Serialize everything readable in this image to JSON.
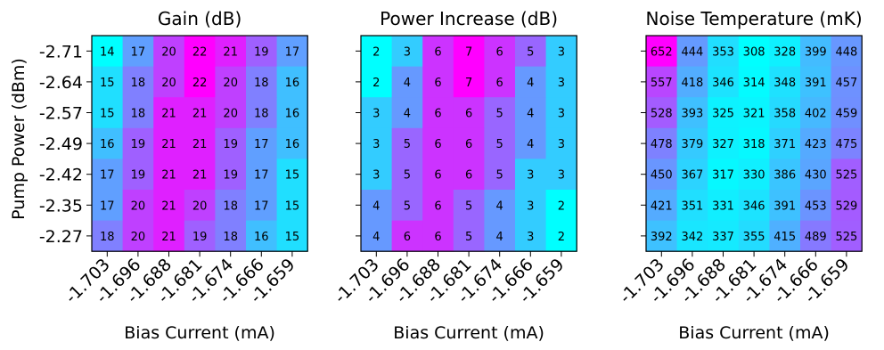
{
  "shared_axes": {
    "xlabel": "Bias Current (mA)",
    "ylabel": "Pump Power (dBm)"
  },
  "chart_data": [
    {
      "type": "heatmap",
      "title": "Gain (dB)",
      "x_categories": [
        "-1.703",
        "-1.696",
        "-1.688",
        "-1.681",
        "-1.674",
        "-1.666",
        "-1.659"
      ],
      "y_categories": [
        "-2.71",
        "-2.64",
        "-2.57",
        "-2.49",
        "-2.42",
        "-2.35",
        "-2.27"
      ],
      "xlabel": "Bias Current (mA)",
      "ylabel": "Pump Power (dBm)",
      "colormap": "cool",
      "values": [
        [
          14,
          17,
          20,
          22,
          21,
          19,
          17
        ],
        [
          15,
          18,
          20,
          22,
          20,
          18,
          16
        ],
        [
          15,
          18,
          21,
          21,
          20,
          18,
          16
        ],
        [
          16,
          19,
          21,
          21,
          19,
          17,
          16
        ],
        [
          17,
          19,
          21,
          21,
          19,
          17,
          15
        ],
        [
          17,
          20,
          21,
          20,
          18,
          17,
          15
        ],
        [
          18,
          20,
          21,
          19,
          18,
          16,
          15
        ]
      ]
    },
    {
      "type": "heatmap",
      "title": "Power Increase (dB)",
      "x_categories": [
        "-1.703",
        "-1.696",
        "-1.688",
        "-1.681",
        "-1.674",
        "-1.666",
        "-1.659"
      ],
      "y_categories": [
        "-2.71",
        "-2.64",
        "-2.57",
        "-2.49",
        "-2.42",
        "-2.35",
        "-2.27"
      ],
      "xlabel": "Bias Current (mA)",
      "colormap": "cool",
      "values": [
        [
          2,
          3,
          6,
          7,
          6,
          5,
          3
        ],
        [
          2,
          4,
          6,
          7,
          6,
          4,
          3
        ],
        [
          3,
          4,
          6,
          6,
          5,
          4,
          3
        ],
        [
          3,
          5,
          6,
          6,
          5,
          4,
          3
        ],
        [
          3,
          5,
          6,
          6,
          5,
          3,
          3
        ],
        [
          4,
          5,
          6,
          5,
          4,
          3,
          2
        ],
        [
          4,
          6,
          6,
          5,
          4,
          3,
          2
        ]
      ]
    },
    {
      "type": "heatmap",
      "title": "Noise Temperature (mK)",
      "x_categories": [
        "-1.703",
        "-1.696",
        "-1.688",
        "-1.681",
        "-1.674",
        "-1.666",
        "-1.659"
      ],
      "y_categories": [
        "-2.71",
        "-2.64",
        "-2.57",
        "-2.49",
        "-2.42",
        "-2.35",
        "-2.27"
      ],
      "xlabel": "Bias Current (mA)",
      "colormap": "cool",
      "values": [
        [
          652,
          444,
          353,
          308,
          328,
          399,
          448
        ],
        [
          557,
          418,
          346,
          314,
          348,
          391,
          457
        ],
        [
          528,
          393,
          325,
          321,
          358,
          402,
          459
        ],
        [
          478,
          379,
          327,
          318,
          371,
          423,
          475
        ],
        [
          450,
          367,
          317,
          330,
          386,
          430,
          525
        ],
        [
          421,
          351,
          331,
          346,
          391,
          453,
          529
        ],
        [
          392,
          342,
          337,
          355,
          415,
          489,
          525
        ]
      ]
    }
  ]
}
